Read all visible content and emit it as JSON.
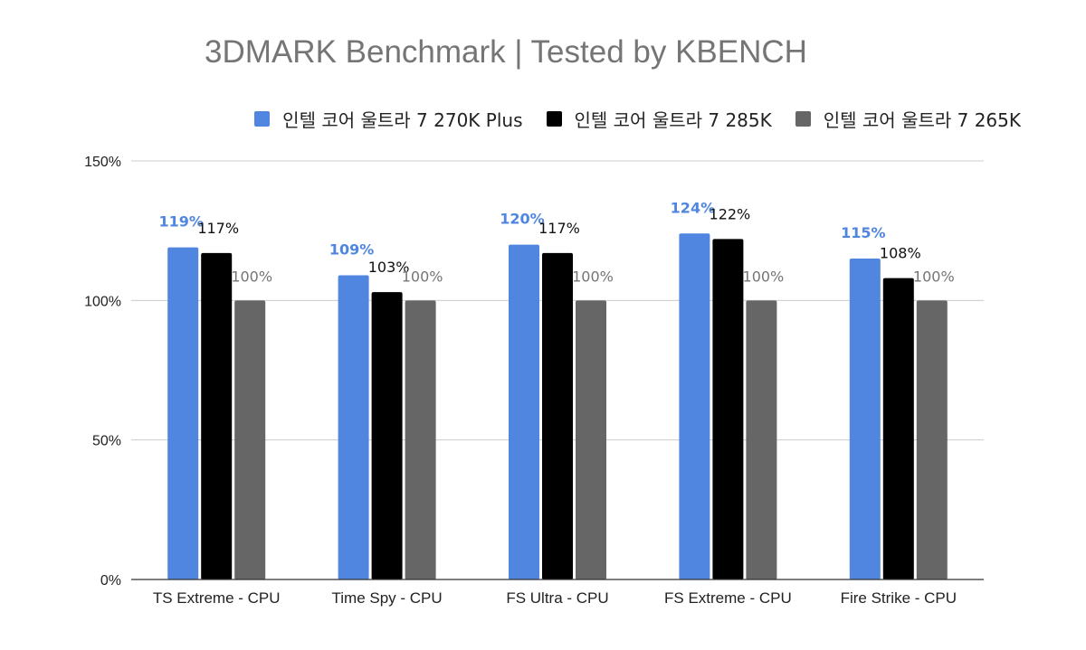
{
  "chart_data": {
    "type": "bar",
    "title": "3DMARK Benchmark | Tested by KBENCH",
    "categories": [
      "TS Extreme - CPU",
      "Time Spy - CPU",
      "FS Ultra - CPU",
      "FS Extreme - CPU",
      "Fire Strike - CPU"
    ],
    "series": [
      {
        "name": "인텔 코어 울트라 7 270K Plus",
        "color": "#5086e0",
        "label_color": "#5086e0",
        "values": [
          119,
          109,
          120,
          124,
          115
        ],
        "labels": [
          "119%",
          "109%",
          "120%",
          "124%",
          "115%"
        ]
      },
      {
        "name": "인텔 코어 울트라 7 285K",
        "color": "#000000",
        "label_color": "#111111",
        "values": [
          117,
          103,
          117,
          122,
          108
        ],
        "labels": [
          "117%",
          "103%",
          "117%",
          "122%",
          "108%"
        ]
      },
      {
        "name": "인텔 코어 울트라 7 265K",
        "color": "#666666",
        "label_color": "#757575",
        "values": [
          100,
          100,
          100,
          100,
          100
        ],
        "labels": [
          "100%",
          "100%",
          "100%",
          "100%",
          "100%"
        ]
      }
    ],
    "ylim": [
      0,
      150
    ],
    "yticks": [
      0,
      50,
      100,
      150
    ],
    "ytick_labels": [
      "0%",
      "50%",
      "100%",
      "150%"
    ],
    "grid": true,
    "legend_position": "top-right"
  }
}
